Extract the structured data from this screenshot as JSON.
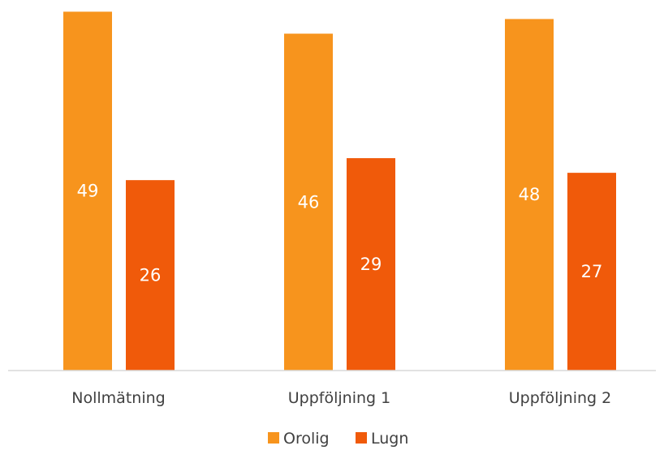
{
  "chart_data": {
    "type": "bar",
    "categories": [
      "Nollmätning",
      "Uppföljning 1",
      "Uppföljning 2"
    ],
    "series": [
      {
        "name": "Orolig",
        "values": [
          49,
          46,
          48
        ],
        "color": "#F7941D"
      },
      {
        "name": "Lugn",
        "values": [
          26,
          29,
          27
        ],
        "color": "#F05A0A"
      }
    ],
    "title": "",
    "xlabel": "",
    "ylabel": "",
    "ylim": [
      0,
      49.6
    ],
    "grid": false,
    "legend": "bottom-center",
    "data_labels": true,
    "axis_color": "#D9D9D9"
  }
}
